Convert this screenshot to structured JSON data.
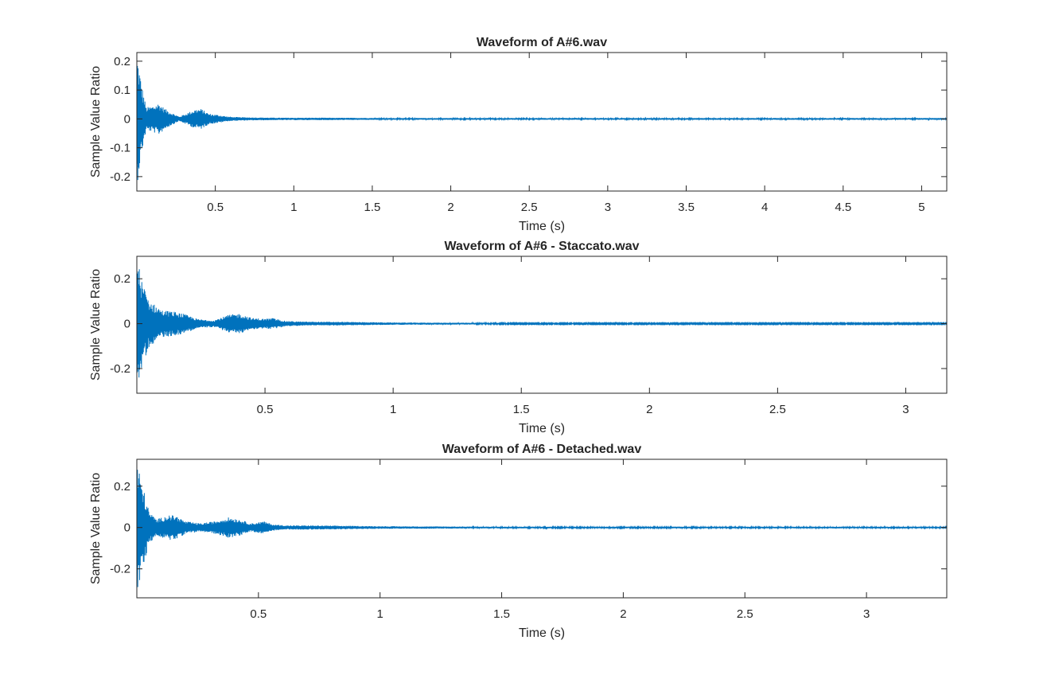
{
  "chart_data": [
    {
      "type": "line",
      "title": "Waveform of A#6.wav",
      "xlabel": "Time (s)",
      "ylabel": "Sample Value Ratio",
      "xlim": [
        0,
        5.16
      ],
      "ylim": [
        -0.25,
        0.23
      ],
      "xticks": [
        "0.5",
        "1",
        "1.5",
        "2",
        "2.5",
        "3",
        "3.5",
        "4",
        "4.5",
        "5"
      ],
      "yticks": [
        "-0.2",
        "-0.1",
        "0",
        "0.1",
        "0.2"
      ],
      "series": [
        {
          "color": "#0072bd",
          "x": [
            0.0,
            0.03,
            0.06,
            0.1,
            0.14,
            0.18,
            0.22,
            0.27,
            0.32,
            0.37,
            0.41,
            0.46,
            0.52,
            0.58,
            0.65,
            0.75,
            0.9,
            1.2,
            1.6,
            2.0,
            3.0,
            4.0,
            5.16
          ],
          "envelope": [
            0.235,
            0.12,
            0.04,
            0.045,
            0.055,
            0.035,
            0.022,
            0.008,
            0.02,
            0.033,
            0.035,
            0.018,
            0.014,
            0.008,
            0.006,
            0.005,
            0.004,
            0.004,
            0.003,
            0.003,
            0.003,
            0.003,
            0.003
          ]
        }
      ]
    },
    {
      "type": "line",
      "title": "Waveform of A#6 - Staccato.wav",
      "xlabel": "Time (s)",
      "ylabel": "Sample Value Ratio",
      "xlim": [
        0,
        3.16
      ],
      "ylim": [
        -0.31,
        0.3
      ],
      "xticks": [
        "0.5",
        "1",
        "1.5",
        "2",
        "2.5",
        "3"
      ],
      "yticks": [
        "-0.2",
        "0",
        "0.2"
      ],
      "series": [
        {
          "color": "#0072bd",
          "x": [
            0.0,
            0.02,
            0.05,
            0.1,
            0.14,
            0.18,
            0.24,
            0.3,
            0.36,
            0.4,
            0.45,
            0.5,
            0.53,
            0.58,
            0.65,
            0.8,
            1.0,
            1.5,
            2.0,
            3.16
          ],
          "envelope": [
            0.3,
            0.19,
            0.1,
            0.06,
            0.055,
            0.045,
            0.02,
            0.015,
            0.04,
            0.045,
            0.025,
            0.022,
            0.025,
            0.012,
            0.009,
            0.008,
            0.005,
            0.003,
            0.003,
            0.003
          ]
        }
      ]
    },
    {
      "type": "line",
      "title": "Waveform of A#6 - Detached.wav",
      "xlabel": "Time (s)",
      "ylabel": "Sample Value Ratio",
      "xlim": [
        0,
        3.33
      ],
      "ylim": [
        -0.34,
        0.33
      ],
      "xticks": [
        "0.5",
        "1",
        "1.5",
        "2",
        "2.5",
        "3"
      ],
      "yticks": [
        "-0.2",
        "0",
        "0.2"
      ],
      "series": [
        {
          "color": "#0072bd",
          "x": [
            0.0,
            0.02,
            0.05,
            0.08,
            0.13,
            0.16,
            0.2,
            0.26,
            0.32,
            0.38,
            0.42,
            0.47,
            0.52,
            0.56,
            0.62,
            0.7,
            0.8,
            1.0,
            1.5,
            2.0,
            3.33
          ],
          "envelope": [
            0.33,
            0.22,
            0.08,
            0.04,
            0.06,
            0.058,
            0.03,
            0.02,
            0.03,
            0.05,
            0.04,
            0.02,
            0.03,
            0.015,
            0.01,
            0.01,
            0.009,
            0.006,
            0.004,
            0.004,
            0.004
          ]
        }
      ]
    }
  ]
}
